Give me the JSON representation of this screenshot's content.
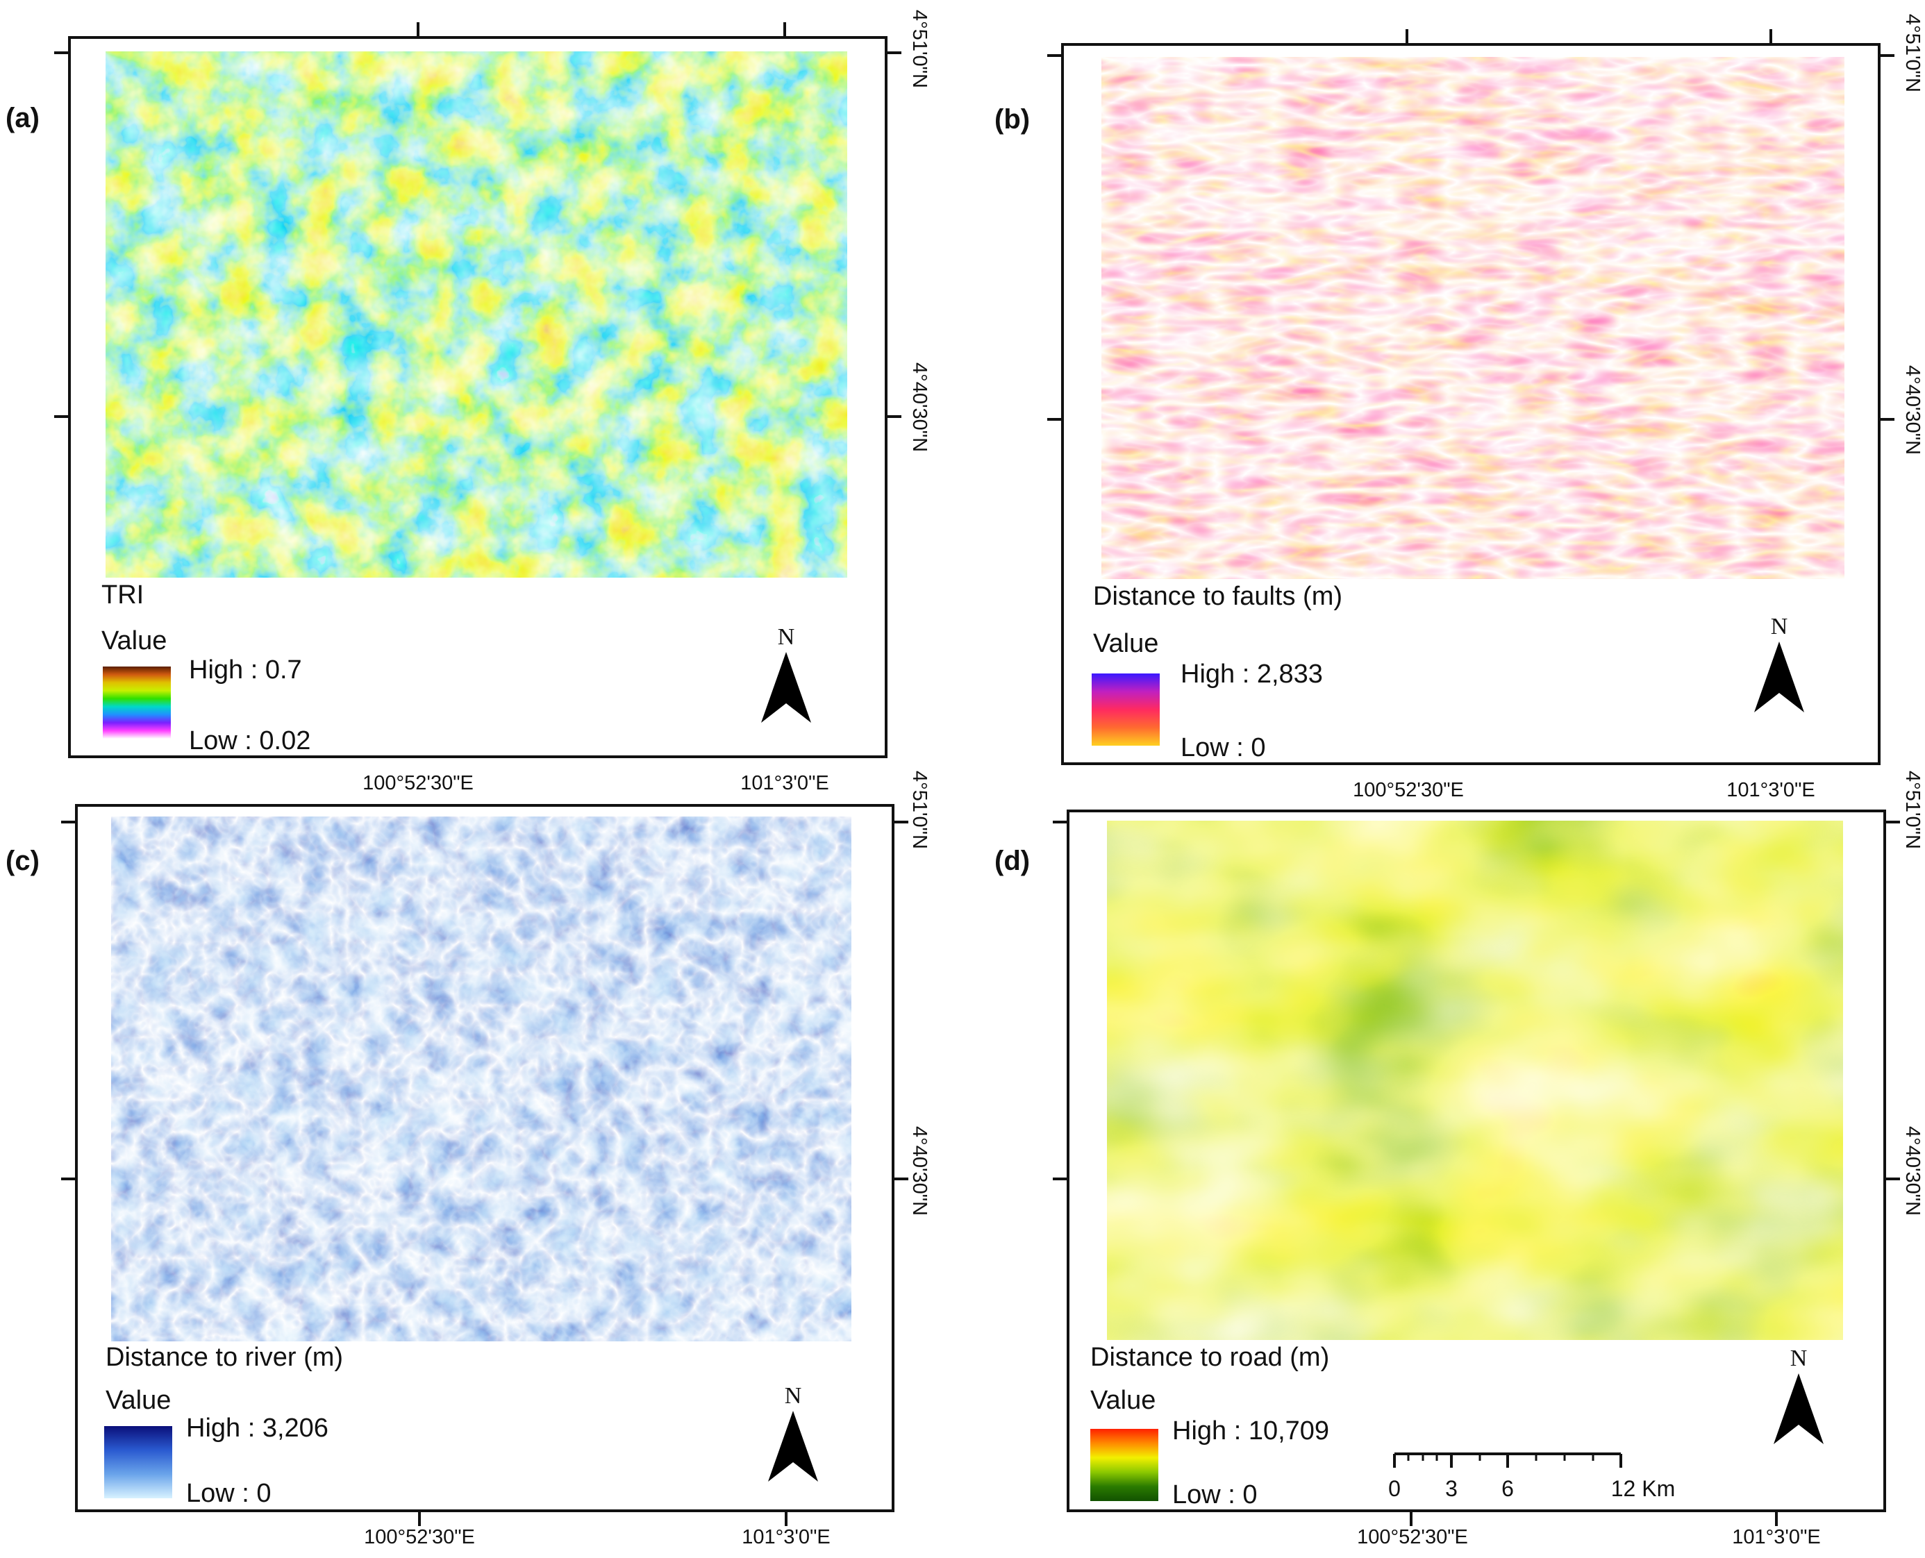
{
  "panels": {
    "a": {
      "label": "(a)",
      "title": "TRI",
      "legend_heading": "Value",
      "high": "High : 0.7",
      "low": "Low : 0.02",
      "ramp_colors": [
        "#5a1e00",
        "#d05a10",
        "#e0c000",
        "#c8f000",
        "#30e000",
        "#00d8c8",
        "#2090ff",
        "#7a20ff",
        "#ff40ff",
        "#ffffff"
      ]
    },
    "b": {
      "label": "(b)",
      "title": "Distance to faults (m)",
      "legend_heading": "Value",
      "high": "High : 2,833",
      "low": "Low : 0",
      "ramp_colors": [
        "#3a18ff",
        "#c020c0",
        "#ff2a60",
        "#ff6a30",
        "#ffd020"
      ]
    },
    "c": {
      "label": "(c)",
      "title": "Distance to river (m)",
      "legend_heading": "Value",
      "high": "High : 3,206",
      "low": "Low : 0",
      "ramp_colors": [
        "#0a0f7a",
        "#2a5ad0",
        "#6aa4ea",
        "#d8f2ff"
      ]
    },
    "d": {
      "label": "(d)",
      "title": "Distance to road (m)",
      "legend_heading": "Value",
      "high": "High : 10,709",
      "low": "Low : 0",
      "ramp_colors": [
        "#ff2000",
        "#ff8a00",
        "#f2f000",
        "#8cc800",
        "#2a7a00",
        "#125200"
      ]
    }
  },
  "coordinates": {
    "lon_west": "100°52'30\"E",
    "lon_east": "101°3'0\"E",
    "lat_north": "4°51'0\"N",
    "lat_mid": "4°40'30\"N"
  },
  "north_arrow": "N",
  "scale_bar": {
    "ticks": [
      "0",
      "3",
      "6",
      "12 Km"
    ]
  },
  "colors": {
    "tri": [
      "#5a1e00",
      "#d05a10",
      "#e0c000",
      "#c8f000",
      "#30e000",
      "#00d8c8",
      "#ff40ff"
    ],
    "faults": [
      "#ff1c5c",
      "#ffb000",
      "#2a18ff"
    ],
    "river": [
      "#0a0f7a",
      "#cfeeff"
    ],
    "road": [
      "#125200",
      "#f2f000",
      "#ff2000"
    ]
  }
}
